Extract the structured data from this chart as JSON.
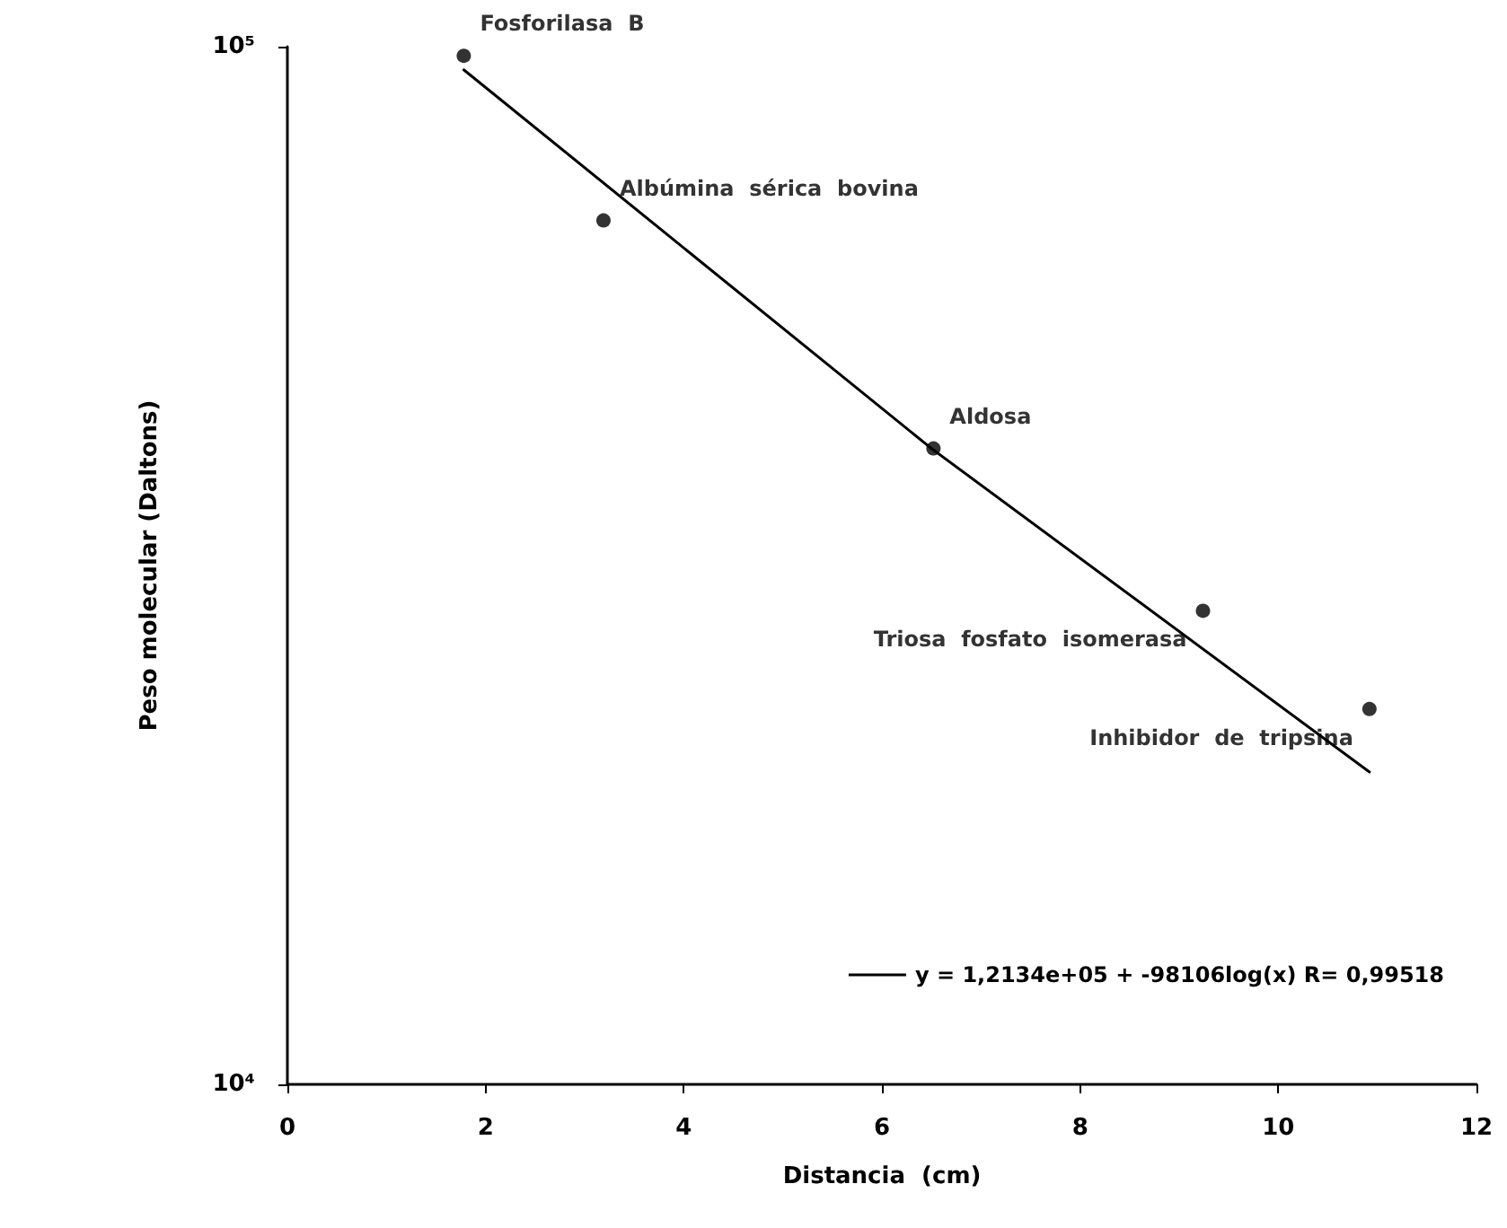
{
  "chart_data": {
    "type": "scatter",
    "xlabel": "Distancia  (cm)",
    "ylabel": "Peso molecular (Daltons)",
    "log": "y",
    "xlim": [
      0,
      12
    ],
    "xticks": [
      0,
      2,
      4,
      6,
      8,
      10,
      12
    ],
    "ylim": [
      10000,
      100000
    ],
    "yticks": [
      {
        "value": 10000,
        "label": "10⁴"
      },
      {
        "value": 100000,
        "label": "10⁵"
      }
    ],
    "grid": false,
    "legend": "bottom right",
    "marker": "circle",
    "series": [
      {
        "color": "#000000",
        "x": [
          1.78,
          3.19,
          6.52,
          9.24,
          10.92
        ],
        "values": [
          98000,
          68000,
          41000,
          28600,
          23000
        ]
      },
      {
        "type": "line",
        "name": "y = 1,2134e+05 + -98106log(x) R= 0,99518",
        "color": "#000000",
        "marker": "none",
        "line_style": "solid",
        "x": [
          1.78,
          6.5,
          10.92
        ],
        "values": [
          95000,
          41000,
          20000
        ]
      }
    ],
    "annotations": [
      {
        "text": "Fosforilasa  B",
        "x": 1.78,
        "y": 98000
      },
      {
        "text": "Albúmina  sérica  bovina",
        "x": 3.19,
        "y": 68000
      },
      {
        "text": "Aldosa",
        "x": 6.52,
        "y": 41000
      },
      {
        "text": "Triosa  fosfato  isomerasa",
        "x": 9.24,
        "y": 28600
      },
      {
        "text": "Inhibidor  de  tripsina",
        "x": 10.92,
        "y": 23000
      }
    ]
  }
}
